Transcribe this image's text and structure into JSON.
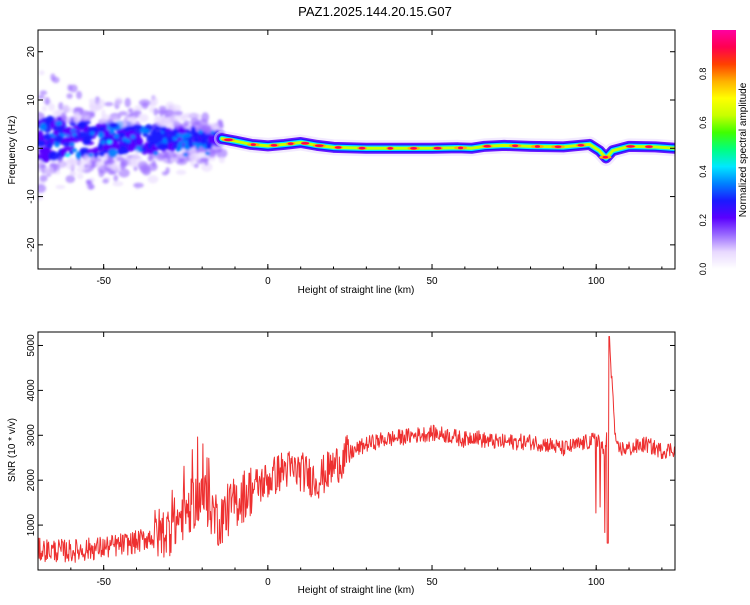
{
  "title": "PAZ1.2025.144.20.15.G07",
  "chart_data": [
    {
      "type": "heatmap",
      "title": "PAZ1.2025.144.20.15.G07",
      "xlabel": "Height of straight line (km)",
      "ylabel": "Frequency (Hz)",
      "xlim": [
        -70,
        124
      ],
      "ylim": [
        -25,
        24.5
      ],
      "xticks": [
        -50,
        0,
        50,
        100
      ],
      "yticks": [
        -20,
        -10,
        0,
        10,
        20
      ],
      "colorbar": {
        "label": "Normalized spectral amplitude",
        "range": [
          0,
          0.98
        ],
        "ticks": [
          0.0,
          0.2,
          0.4,
          0.6,
          0.8
        ],
        "tick_labels": [
          "0.0",
          "0.2",
          "0.4",
          "0.6",
          "0.8"
        ],
        "colormap": [
          "#ffffff",
          "#e8d9ff",
          "#9a6bff",
          "#5a00ff",
          "#1a1aff",
          "#0080ff",
          "#00e8ff",
          "#00ff80",
          "#40ff00",
          "#c8ff00",
          "#ffff00",
          "#ffb000",
          "#ff4000",
          "#ff0050",
          "#ff00a0"
        ]
      },
      "ridge": [
        {
          "x": -14,
          "y": 2.0
        },
        {
          "x": -10,
          "y": 1.5
        },
        {
          "x": -5,
          "y": 0.8
        },
        {
          "x": 0,
          "y": 0.5
        },
        {
          "x": 5,
          "y": 0.8
        },
        {
          "x": 10,
          "y": 1.2
        },
        {
          "x": 15,
          "y": 0.6
        },
        {
          "x": 20,
          "y": 0.2
        },
        {
          "x": 30,
          "y": 0.0
        },
        {
          "x": 40,
          "y": 0.0
        },
        {
          "x": 50,
          "y": 0.0
        },
        {
          "x": 58,
          "y": 0.1
        },
        {
          "x": 62,
          "y": 0.0
        },
        {
          "x": 66,
          "y": 0.4
        },
        {
          "x": 72,
          "y": 0.6
        },
        {
          "x": 80,
          "y": 0.4
        },
        {
          "x": 90,
          "y": 0.3
        },
        {
          "x": 98,
          "y": 0.8
        },
        {
          "x": 101,
          "y": -0.5
        },
        {
          "x": 103,
          "y": -2.0
        },
        {
          "x": 105,
          "y": -0.5
        },
        {
          "x": 110,
          "y": 0.4
        },
        {
          "x": 118,
          "y": 0.3
        },
        {
          "x": 124,
          "y": 0.0
        }
      ],
      "scatter_region": {
        "x_range": [
          -70,
          -14
        ],
        "y_range": [
          -22,
          22
        ]
      }
    },
    {
      "type": "line",
      "xlabel": "Height of straight line (km)",
      "ylabel": "SNR (10 * v/v)",
      "xlim": [
        -70,
        124
      ],
      "ylim": [
        0,
        5300
      ],
      "xticks": [
        -50,
        0,
        50,
        100
      ],
      "yticks": [
        1000,
        2000,
        3000,
        4000,
        5000
      ],
      "color": "#ee3030",
      "series": [
        {
          "x": [
            -70,
            -60,
            -50,
            -40,
            -30,
            -25,
            -20,
            -15,
            -10,
            -5,
            0,
            5,
            10,
            15,
            20,
            25,
            30,
            35,
            40,
            45,
            50,
            55,
            60,
            63,
            65,
            70,
            75,
            80,
            85,
            90,
            95,
            100,
            103,
            104,
            106,
            110,
            115,
            120,
            124
          ],
          "y": [
            450,
            420,
            500,
            620,
            900,
            1300,
            1700,
            1100,
            1500,
            1800,
            2000,
            2250,
            2200,
            2000,
            2300,
            2600,
            2800,
            2900,
            2950,
            3000,
            3050,
            3000,
            2900,
            3000,
            2900,
            2850,
            2850,
            2850,
            2800,
            2700,
            2800,
            2900,
            2600,
            5200,
            2700,
            2700,
            2800,
            2650,
            2700
          ]
        }
      ]
    }
  ]
}
